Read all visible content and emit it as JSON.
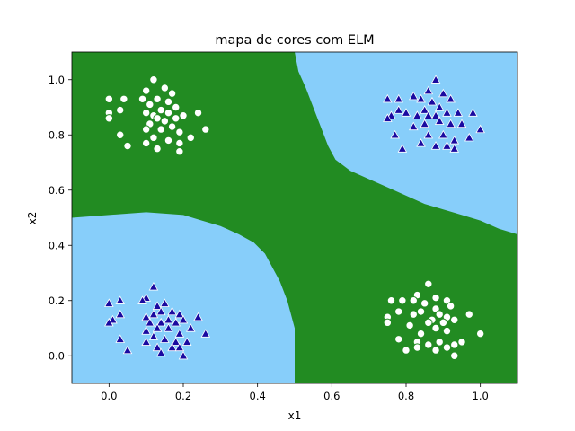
{
  "chart_data": {
    "type": "scatter",
    "title": "mapa de cores com ELM",
    "xlabel": "x1",
    "ylabel": "x2",
    "xlim": [
      -0.1,
      1.1
    ],
    "ylim": [
      -0.1,
      1.1
    ],
    "xticks": [
      0.0,
      0.2,
      0.4,
      0.6,
      0.8,
      1.0
    ],
    "yticks": [
      0.0,
      0.2,
      0.4,
      0.6,
      0.8,
      1.0
    ],
    "grid": false,
    "background_regions": {
      "colors": {
        "class_0": "#228b22",
        "class_1": "#87cefa"
      },
      "class_1_regions": [
        {
          "description": "top-right",
          "boundary": [
            [
              0.5,
              1.1
            ],
            [
              0.51,
              1.03
            ],
            [
              0.53,
              0.97
            ],
            [
              0.55,
              0.9
            ],
            [
              0.57,
              0.83
            ],
            [
              0.59,
              0.76
            ],
            [
              0.61,
              0.71
            ],
            [
              0.65,
              0.67
            ],
            [
              0.7,
              0.64
            ],
            [
              0.75,
              0.61
            ],
            [
              0.8,
              0.58
            ],
            [
              0.85,
              0.55
            ],
            [
              0.9,
              0.53
            ],
            [
              0.95,
              0.51
            ],
            [
              1.0,
              0.49
            ],
            [
              1.05,
              0.46
            ],
            [
              1.1,
              0.44
            ]
          ]
        },
        {
          "description": "bottom-left",
          "boundary": [
            [
              -0.1,
              0.5
            ],
            [
              0.0,
              0.51
            ],
            [
              0.1,
              0.52
            ],
            [
              0.2,
              0.51
            ],
            [
              0.25,
              0.49
            ],
            [
              0.3,
              0.47
            ],
            [
              0.35,
              0.44
            ],
            [
              0.39,
              0.41
            ],
            [
              0.42,
              0.37
            ],
            [
              0.44,
              0.32
            ],
            [
              0.46,
              0.27
            ],
            [
              0.48,
              0.2
            ],
            [
              0.5,
              0.1
            ],
            [
              0.5,
              -0.1
            ]
          ]
        }
      ]
    },
    "series": [
      {
        "marker": "circle",
        "color": "#ffffff",
        "edgecolor": "#228b22",
        "points": [
          [
            0.12,
            1.0
          ],
          [
            0.15,
            0.97
          ],
          [
            0.17,
            0.95
          ],
          [
            0.1,
            0.96
          ],
          [
            0.09,
            0.93
          ],
          [
            0.13,
            0.93
          ],
          [
            0.16,
            0.92
          ],
          [
            0.18,
            0.9
          ],
          [
            0.11,
            0.91
          ],
          [
            0.14,
            0.89
          ],
          [
            0.12,
            0.87
          ],
          [
            0.1,
            0.88
          ],
          [
            0.16,
            0.88
          ],
          [
            0.18,
            0.86
          ],
          [
            0.13,
            0.86
          ],
          [
            0.11,
            0.84
          ],
          [
            0.15,
            0.85
          ],
          [
            0.2,
            0.87
          ],
          [
            0.24,
            0.88
          ],
          [
            0.17,
            0.83
          ],
          [
            0.14,
            0.82
          ],
          [
            0.1,
            0.82
          ],
          [
            0.19,
            0.81
          ],
          [
            0.26,
            0.82
          ],
          [
            0.12,
            0.79
          ],
          [
            0.16,
            0.78
          ],
          [
            0.22,
            0.79
          ],
          [
            0.1,
            0.77
          ],
          [
            0.19,
            0.77
          ],
          [
            0.13,
            0.75
          ],
          [
            0.19,
            0.74
          ],
          [
            0.05,
            0.76
          ],
          [
            0.03,
            0.8
          ],
          [
            0.0,
            0.88
          ],
          [
            0.0,
            0.86
          ],
          [
            0.03,
            0.89
          ],
          [
            0.0,
            0.93
          ],
          [
            0.04,
            0.93
          ],
          [
            0.86,
            0.26
          ],
          [
            0.83,
            0.22
          ],
          [
            0.88,
            0.21
          ],
          [
            0.91,
            0.2
          ],
          [
            0.82,
            0.2
          ],
          [
            0.79,
            0.2
          ],
          [
            0.85,
            0.19
          ],
          [
            0.92,
            0.18
          ],
          [
            0.88,
            0.17
          ],
          [
            0.76,
            0.2
          ],
          [
            0.84,
            0.16
          ],
          [
            0.89,
            0.15
          ],
          [
            0.82,
            0.15
          ],
          [
            0.91,
            0.14
          ],
          [
            0.87,
            0.13
          ],
          [
            0.78,
            0.16
          ],
          [
            0.75,
            0.14
          ],
          [
            0.86,
            0.12
          ],
          [
            0.9,
            0.12
          ],
          [
            0.93,
            0.13
          ],
          [
            0.97,
            0.15
          ],
          [
            0.81,
            0.11
          ],
          [
            0.88,
            0.1
          ],
          [
            0.91,
            0.09
          ],
          [
            0.84,
            0.08
          ],
          [
            0.75,
            0.12
          ],
          [
            0.83,
            0.05
          ],
          [
            0.86,
            0.04
          ],
          [
            0.89,
            0.05
          ],
          [
            0.93,
            0.04
          ],
          [
            0.95,
            0.05
          ],
          [
            0.78,
            0.06
          ],
          [
            0.83,
            0.03
          ],
          [
            0.88,
            0.02
          ],
          [
            0.91,
            0.03
          ],
          [
            0.93,
            0.0
          ],
          [
            0.8,
            0.02
          ],
          [
            1.0,
            0.08
          ]
        ]
      },
      {
        "marker": "triangle",
        "color": "#1a0aa0",
        "edgecolor": "#ffffff",
        "points": [
          [
            0.88,
            1.0
          ],
          [
            0.86,
            0.96
          ],
          [
            0.9,
            0.95
          ],
          [
            0.92,
            0.93
          ],
          [
            0.84,
            0.93
          ],
          [
            0.82,
            0.94
          ],
          [
            0.87,
            0.92
          ],
          [
            0.89,
            0.9
          ],
          [
            0.85,
            0.89
          ],
          [
            0.91,
            0.88
          ],
          [
            0.94,
            0.88
          ],
          [
            0.88,
            0.87
          ],
          [
            0.86,
            0.87
          ],
          [
            0.83,
            0.87
          ],
          [
            0.8,
            0.88
          ],
          [
            0.76,
            0.87
          ],
          [
            0.78,
            0.89
          ],
          [
            0.89,
            0.85
          ],
          [
            0.92,
            0.84
          ],
          [
            0.85,
            0.84
          ],
          [
            0.82,
            0.83
          ],
          [
            0.95,
            0.84
          ],
          [
            0.98,
            0.88
          ],
          [
            1.0,
            0.82
          ],
          [
            0.86,
            0.8
          ],
          [
            0.9,
            0.8
          ],
          [
            0.93,
            0.78
          ],
          [
            0.84,
            0.77
          ],
          [
            0.88,
            0.76
          ],
          [
            0.91,
            0.76
          ],
          [
            0.93,
            0.75
          ],
          [
            0.79,
            0.75
          ],
          [
            0.97,
            0.79
          ],
          [
            0.77,
            0.8
          ],
          [
            0.75,
            0.86
          ],
          [
            0.75,
            0.93
          ],
          [
            0.78,
            0.93
          ],
          [
            0.12,
            0.25
          ],
          [
            0.1,
            0.21
          ],
          [
            0.15,
            0.19
          ],
          [
            0.13,
            0.18
          ],
          [
            0.09,
            0.2
          ],
          [
            0.17,
            0.16
          ],
          [
            0.19,
            0.15
          ],
          [
            0.14,
            0.16
          ],
          [
            0.12,
            0.15
          ],
          [
            0.1,
            0.14
          ],
          [
            0.16,
            0.13
          ],
          [
            0.14,
            0.12
          ],
          [
            0.11,
            0.12
          ],
          [
            0.18,
            0.12
          ],
          [
            0.2,
            0.13
          ],
          [
            0.24,
            0.14
          ],
          [
            0.13,
            0.1
          ],
          [
            0.16,
            0.1
          ],
          [
            0.19,
            0.08
          ],
          [
            0.22,
            0.1
          ],
          [
            0.1,
            0.09
          ],
          [
            0.12,
            0.07
          ],
          [
            0.15,
            0.06
          ],
          [
            0.18,
            0.05
          ],
          [
            0.1,
            0.05
          ],
          [
            0.21,
            0.05
          ],
          [
            0.13,
            0.03
          ],
          [
            0.17,
            0.03
          ],
          [
            0.19,
            0.03
          ],
          [
            0.14,
            0.01
          ],
          [
            0.2,
            0.0
          ],
          [
            0.26,
            0.08
          ],
          [
            0.05,
            0.02
          ],
          [
            0.03,
            0.06
          ],
          [
            0.01,
            0.13
          ],
          [
            0.0,
            0.12
          ],
          [
            0.03,
            0.15
          ],
          [
            0.0,
            0.19
          ],
          [
            0.03,
            0.2
          ]
        ]
      }
    ]
  }
}
